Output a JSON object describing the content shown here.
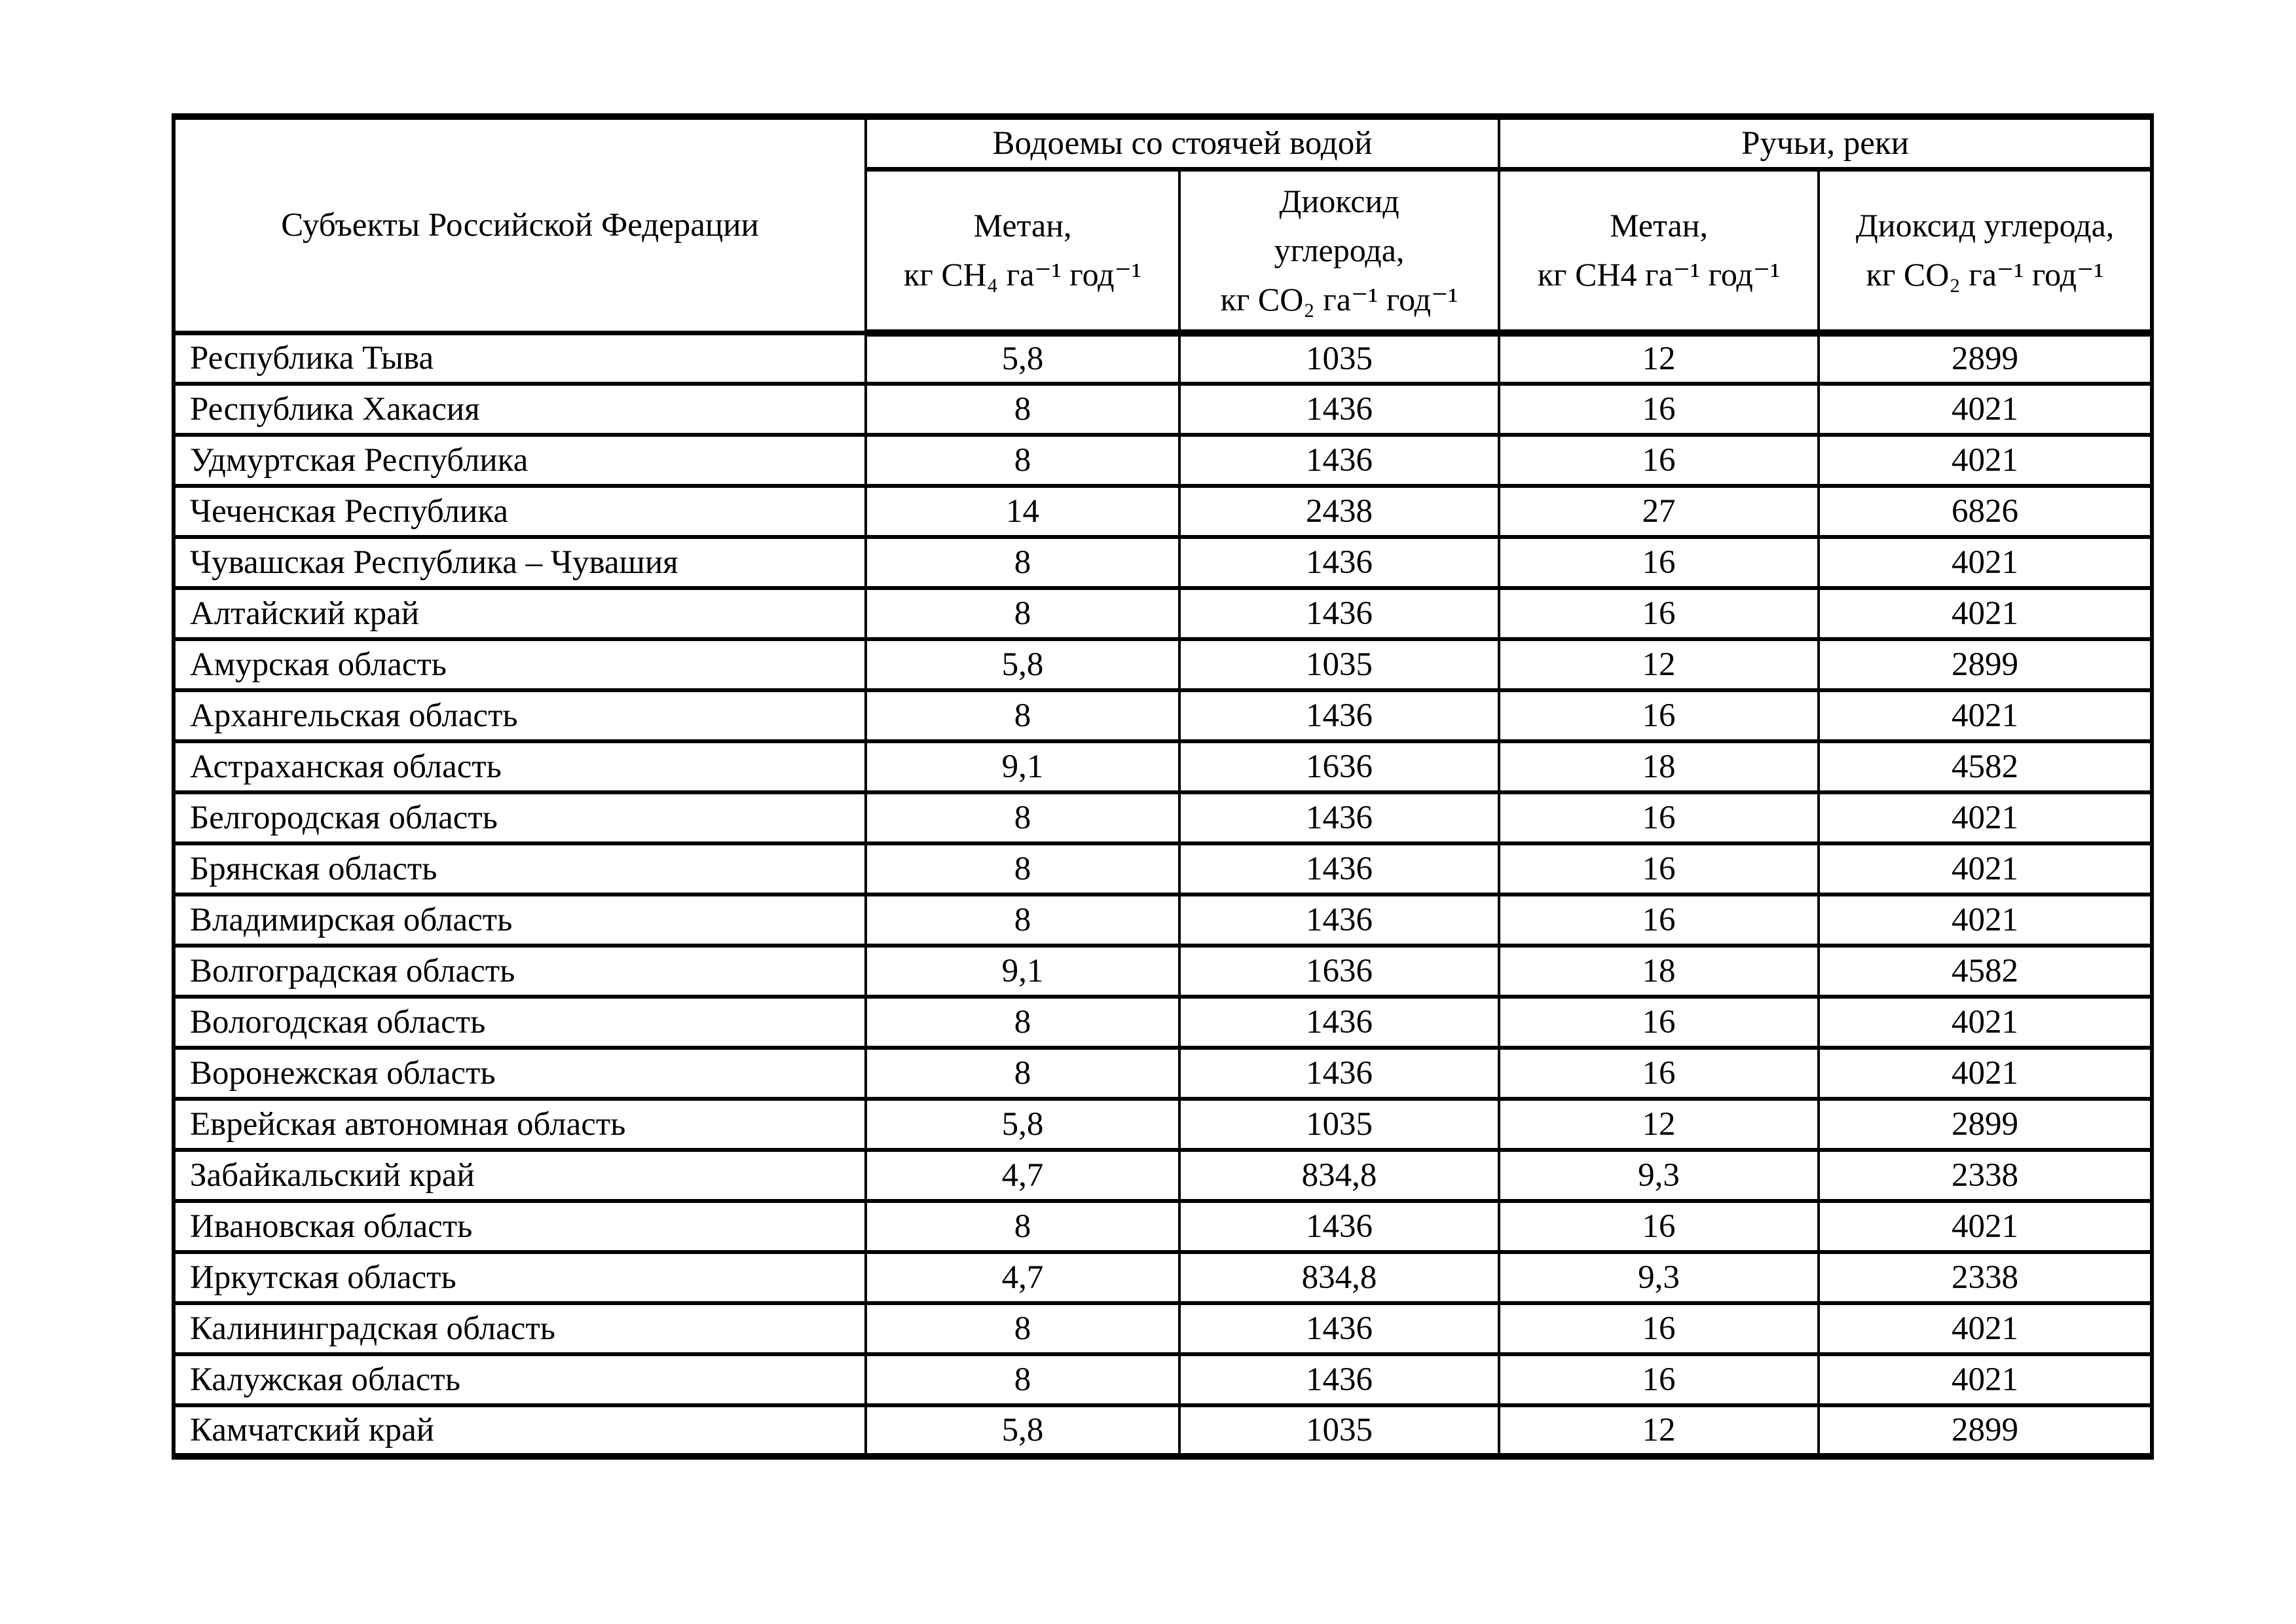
{
  "page": {
    "background_color": "#ffffff",
    "text_color": "#000000"
  },
  "table": {
    "region_header": "Субъекты Российской Федерации",
    "group_headers": {
      "stagnant": "Водоемы со стоячей водой",
      "rivers": "Ручьи, реки"
    },
    "subheaders": {
      "stagnant_ch4": "Метан,\nкг CH₄ га⁻¹ год⁻¹",
      "stagnant_co2": "Диоксид\nуглерода,\nкг CO₂ га⁻¹ год⁻¹",
      "rivers_ch4": "Метан,\nкг CH4 га⁻¹ год⁻¹",
      "rivers_co2": "Диоксид углерода,\nкг CO₂ га⁻¹ год⁻¹"
    },
    "rows": [
      {
        "region": "Республика Тыва",
        "values": [
          "5,8",
          "1035",
          "12",
          "2899"
        ]
      },
      {
        "region": "Республика Хакасия",
        "values": [
          "8",
          "1436",
          "16",
          "4021"
        ]
      },
      {
        "region": "Удмуртская Республика",
        "values": [
          "8",
          "1436",
          "16",
          "4021"
        ]
      },
      {
        "region": "Чеченская Республика",
        "values": [
          "14",
          "2438",
          "27",
          "6826"
        ]
      },
      {
        "region": "Чувашская Республика – Чувашия",
        "values": [
          "8",
          "1436",
          "16",
          "4021"
        ]
      },
      {
        "region": "Алтайский край",
        "values": [
          "8",
          "1436",
          "16",
          "4021"
        ]
      },
      {
        "region": "Амурская область",
        "values": [
          "5,8",
          "1035",
          "12",
          "2899"
        ]
      },
      {
        "region": "Архангельская область",
        "values": [
          "8",
          "1436",
          "16",
          "4021"
        ]
      },
      {
        "region": "Астраханская область",
        "values": [
          "9,1",
          "1636",
          "18",
          "4582"
        ]
      },
      {
        "region": "Белгородская область",
        "values": [
          "8",
          "1436",
          "16",
          "4021"
        ]
      },
      {
        "region": "Брянская область",
        "values": [
          "8",
          "1436",
          "16",
          "4021"
        ]
      },
      {
        "region": "Владимирская область",
        "values": [
          "8",
          "1436",
          "16",
          "4021"
        ]
      },
      {
        "region": "Волгоградская область",
        "values": [
          "9,1",
          "1636",
          "18",
          "4582"
        ]
      },
      {
        "region": "Вологодская область",
        "values": [
          "8",
          "1436",
          "16",
          "4021"
        ]
      },
      {
        "region": "Воронежская область",
        "values": [
          "8",
          "1436",
          "16",
          "4021"
        ]
      },
      {
        "region": "Еврейская автономная область",
        "values": [
          "5,8",
          "1035",
          "12",
          "2899"
        ]
      },
      {
        "region": "Забайкальский край",
        "values": [
          "4,7",
          "834,8",
          "9,3",
          "2338"
        ]
      },
      {
        "region": "Ивановская область",
        "values": [
          "8",
          "1436",
          "16",
          "4021"
        ]
      },
      {
        "region": "Иркутская область",
        "values": [
          "4,7",
          "834,8",
          "9,3",
          "2338"
        ]
      },
      {
        "region": "Калининградская область",
        "values": [
          "8",
          "1436",
          "16",
          "4021"
        ]
      },
      {
        "region": "Калужская область",
        "values": [
          "8",
          "1436",
          "16",
          "4021"
        ]
      },
      {
        "region": "Камчатский край",
        "values": [
          "5,8",
          "1035",
          "12",
          "2899"
        ]
      }
    ]
  }
}
